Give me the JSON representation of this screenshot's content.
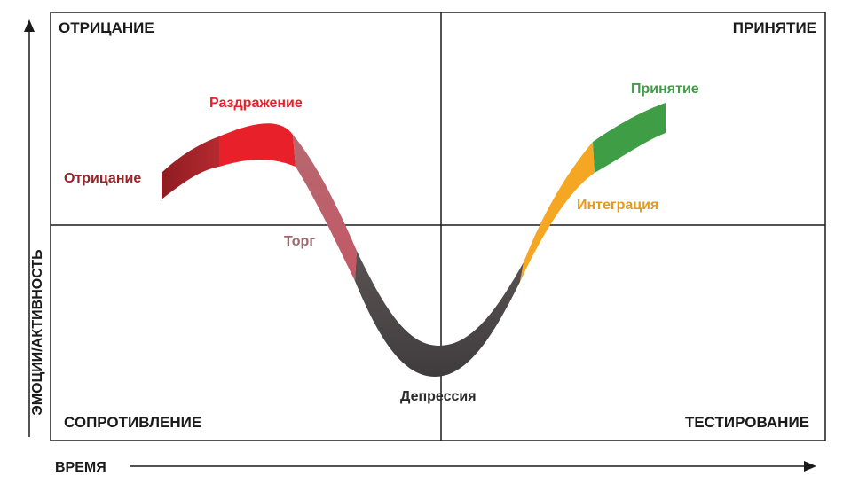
{
  "axes": {
    "x_label": "ВРЕМЯ",
    "y_label": "ЭМОЦИИ/АКТИВНОСТЬ"
  },
  "quadrants": {
    "top_left": "ОТРИЦАНИЕ",
    "top_right": "ПРИНЯТИЕ",
    "bottom_left": "СОПРОТИВЛЕНИЕ",
    "bottom_right": "ТЕСТИРОВАНИЕ"
  },
  "stages": [
    {
      "label": "Отрицание",
      "color": "#9b2227"
    },
    {
      "label": "Раздражение",
      "color": "#e8202a"
    },
    {
      "label": "Торг",
      "color": "#a0676e"
    },
    {
      "label": "Депрессия",
      "color": "#4e4a4b"
    },
    {
      "label": "Интеграция",
      "color": "#f5a623"
    },
    {
      "label": "Принятие",
      "color": "#3f9d45"
    }
  ]
}
